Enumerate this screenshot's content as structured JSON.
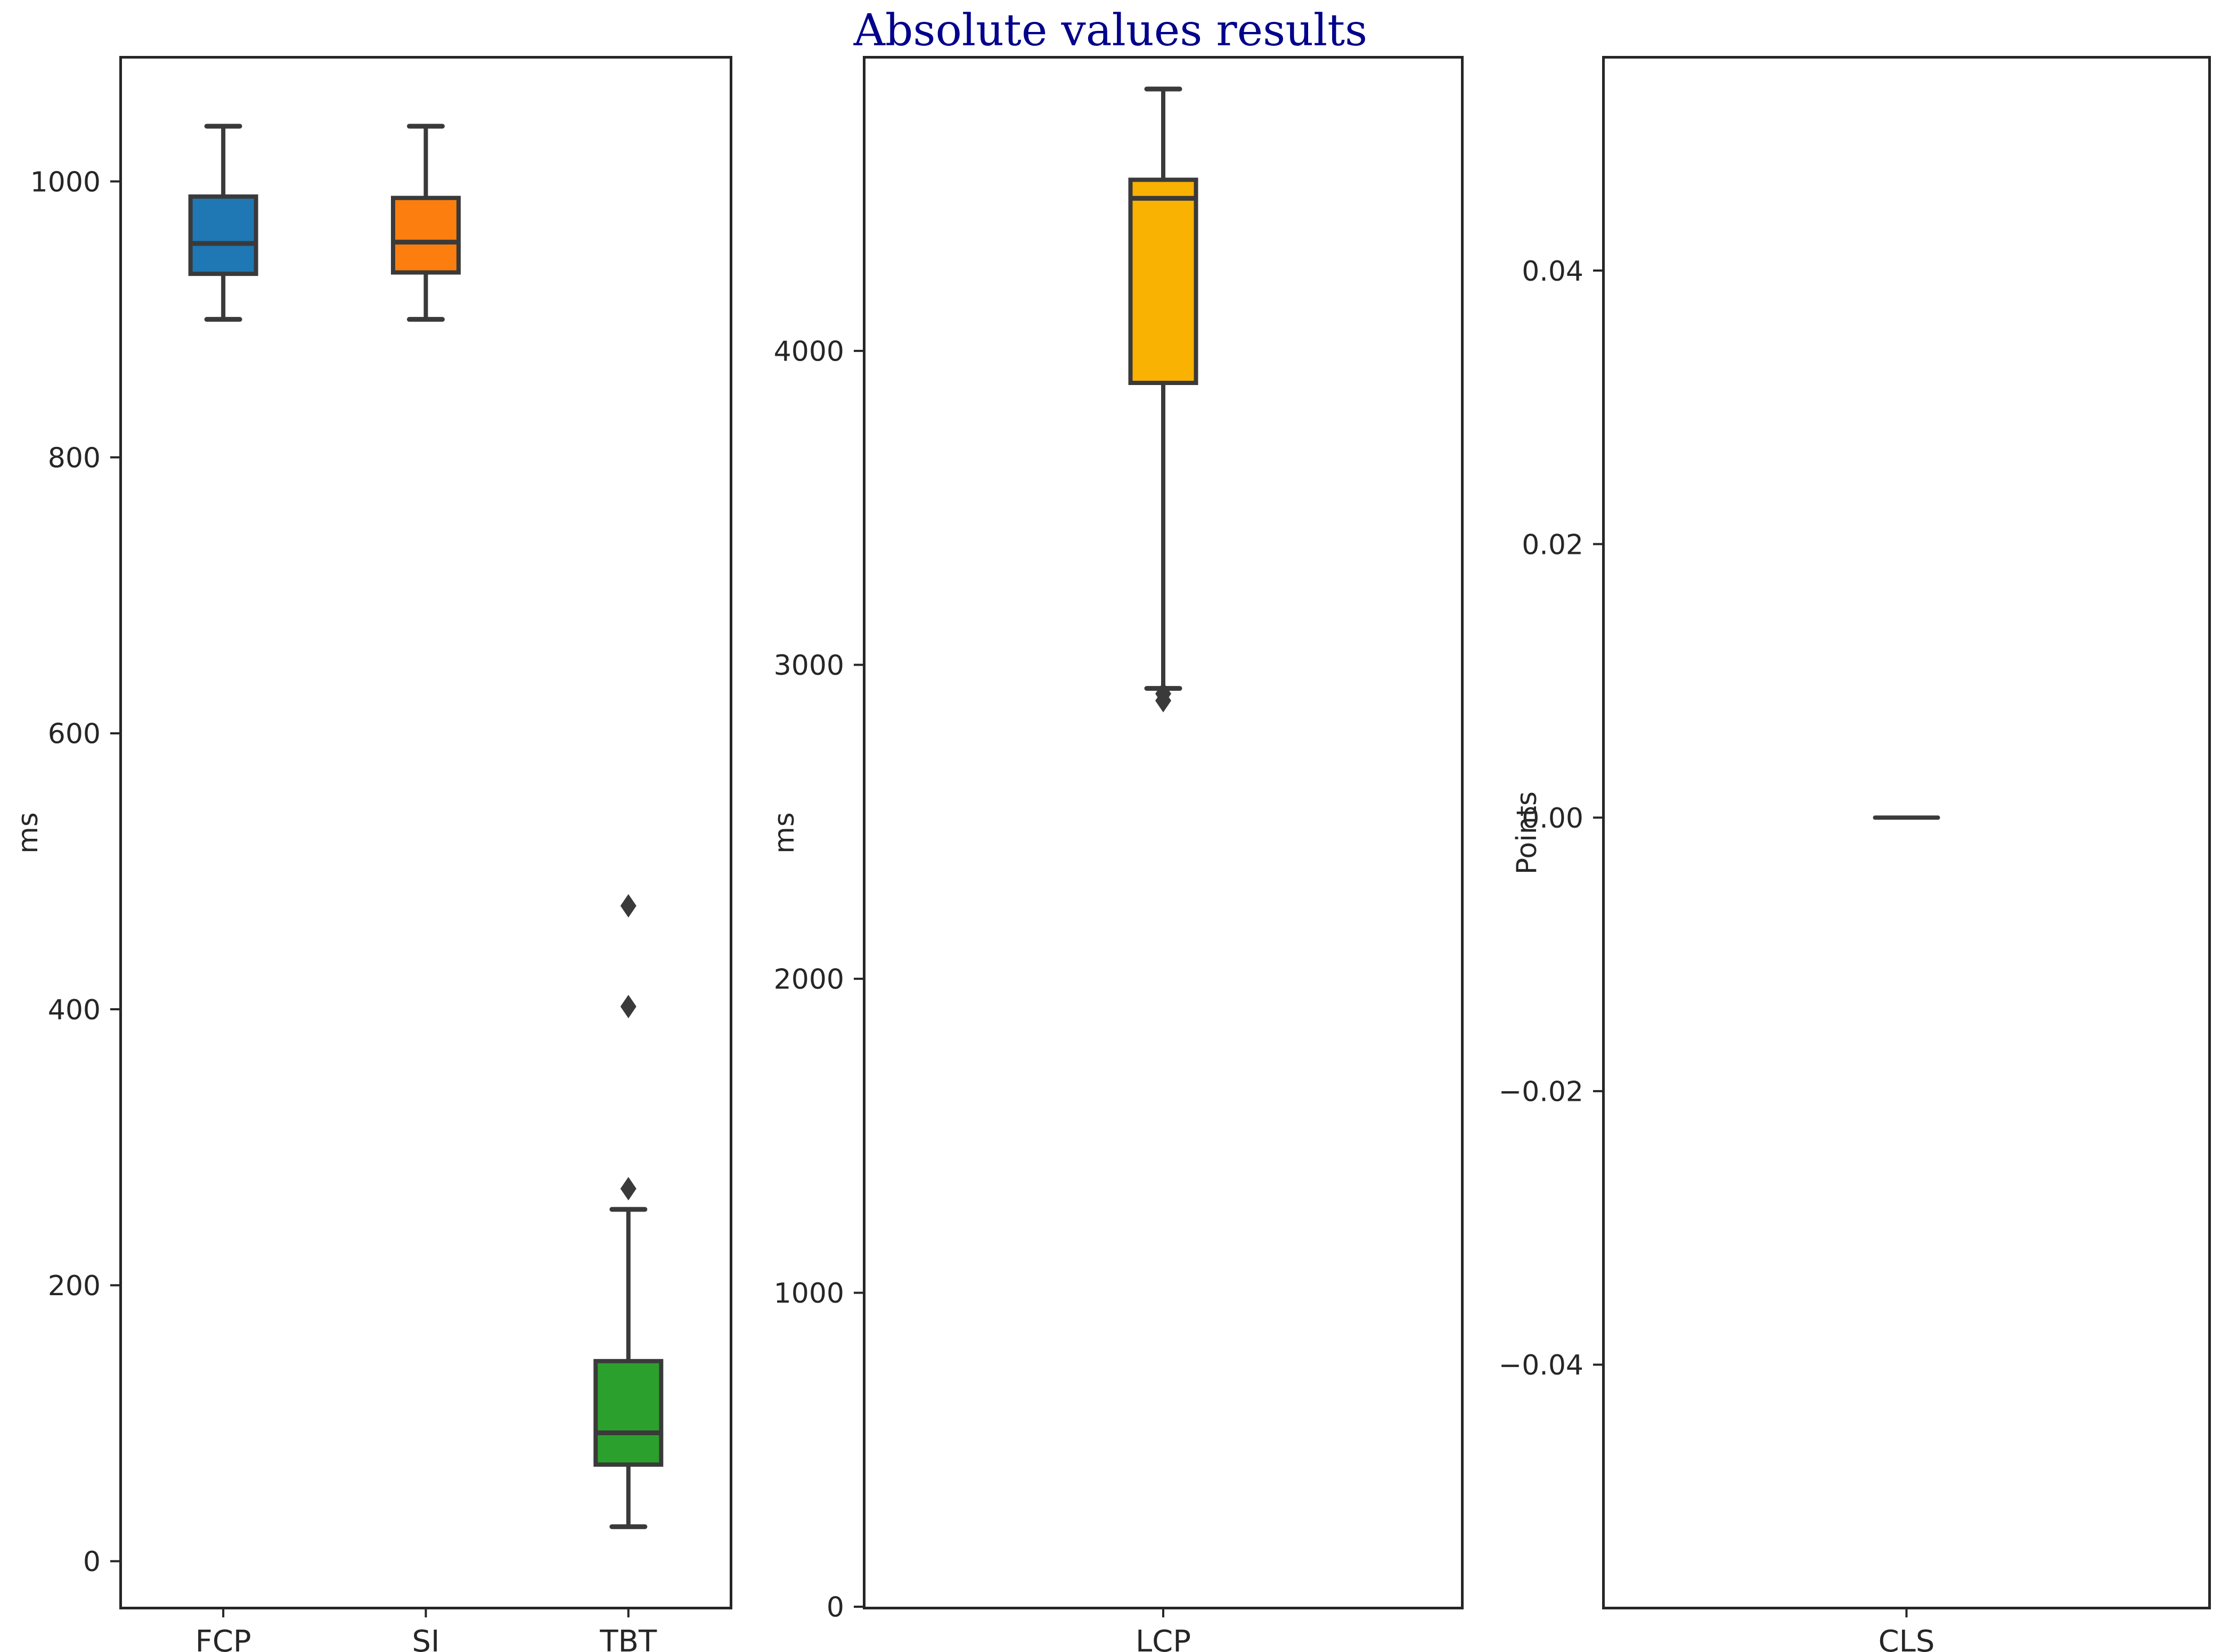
{
  "figure": {
    "title": "Absolute values results",
    "title_color": "#00008B",
    "background": "#FFFFFF",
    "line_color": "#3A3A3A",
    "spine_color": "#262626"
  },
  "chart_data": [
    {
      "type": "box",
      "subplot": "metrics-fcp-si-tbt",
      "ylabel": "ms",
      "ylim": [
        -33,
        1089
      ],
      "yticks": [
        0,
        200,
        400,
        600,
        800,
        1000
      ],
      "ytick_labels": [
        "0",
        "200",
        "400",
        "600",
        "800",
        "1000"
      ],
      "grid": false,
      "legend": "none",
      "categories": [
        "FCP",
        "SI",
        "TBT"
      ],
      "series": [
        {
          "name": "FCP",
          "color": "#1F77B4",
          "whisker_low": 900,
          "q1": 933,
          "median": 955,
          "q3": 989,
          "whisker_high": 1040,
          "outliers": []
        },
        {
          "name": "SI",
          "color": "#FC7E0F",
          "whisker_low": 900,
          "q1": 934,
          "median": 956,
          "q3": 988,
          "whisker_high": 1040,
          "outliers": []
        },
        {
          "name": "TBT",
          "color": "#2CA02C",
          "whisker_low": 25,
          "q1": 70,
          "median": 93,
          "q3": 145,
          "whisker_high": 255,
          "outliers": [
            270,
            402,
            475
          ]
        }
      ]
    },
    {
      "type": "box",
      "subplot": "metric-lcp",
      "ylabel": "ms",
      "ylim": [
        0,
        4931
      ],
      "yticks": [
        0,
        1000,
        2000,
        3000,
        4000
      ],
      "ytick_labels": [
        "0",
        "1000",
        "2000",
        "3000",
        "4000"
      ],
      "grid": false,
      "legend": "none",
      "categories": [
        "LCP"
      ],
      "series": [
        {
          "name": "LCP",
          "color": "#F9B102",
          "whisker_low": 2925,
          "q1": 3898,
          "median": 4486,
          "q3": 4545,
          "whisker_high": 4834,
          "outliers": [
            2908,
            2886
          ]
        }
      ]
    },
    {
      "type": "box",
      "subplot": "metric-cls",
      "ylabel": "Points",
      "ylim": [
        -0.0577,
        0.0555
      ],
      "yticks": [
        -0.04,
        -0.02,
        0,
        0.02,
        0.04
      ],
      "ytick_labels": [
        "−0.04",
        "−0.02",
        "0.00",
        "0.02",
        "0.04"
      ],
      "grid": false,
      "legend": "none",
      "categories": [
        "CLS"
      ],
      "series": [
        {
          "name": "CLS",
          "color": "#3A3A3A",
          "whisker_low": 0,
          "q1": 0,
          "median": 0,
          "q3": 0,
          "whisker_high": 0,
          "outliers": []
        }
      ]
    }
  ]
}
